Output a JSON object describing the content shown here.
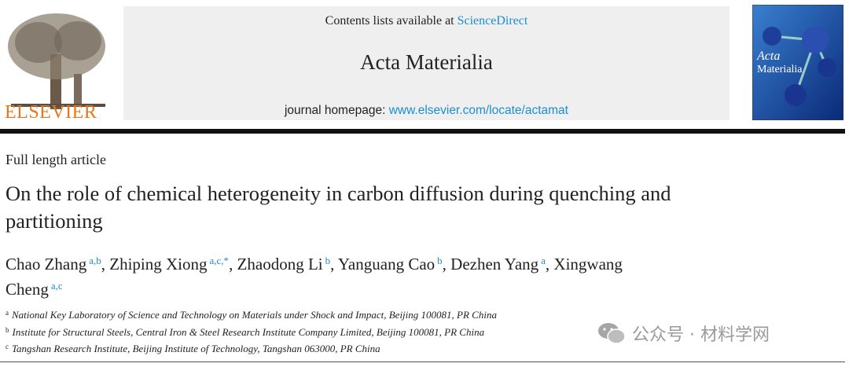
{
  "header": {
    "publisher": "ELSEVIER",
    "contents_prefix": "Contents lists available at",
    "contents_link": "ScienceDirect",
    "journal": "Acta Materialia",
    "homepage_prefix": "journal homepage:",
    "homepage_link": "www.elsevier.com/locate/actamat",
    "cover_title": [
      "Acta",
      "Materialia"
    ]
  },
  "article": {
    "kind": "Full length article",
    "title": "On the role of chemical heterogeneity in carbon diffusion during quenching and partitioning",
    "author_separator": ",",
    "authors": [
      {
        "name": "Chao Zhang",
        "sup": "a,b"
      },
      {
        "name": "Zhiping Xiong",
        "sup": "a,c,*"
      },
      {
        "name": "Zhaodong Li",
        "sup": "b"
      },
      {
        "name": "Yanguang Cao",
        "sup": "b"
      },
      {
        "name": "Dezhen Yang",
        "sup": "a"
      },
      {
        "name": "Xingwang Cheng",
        "sup": "a,c"
      }
    ],
    "affiliations": [
      {
        "key": "a",
        "text": "National Key Laboratory of Science and Technology on Materials under Shock and Impact, Beijing 100081, PR China"
      },
      {
        "key": "b",
        "text": "Institute for Structural Steels, Central Iron & Steel Research Institute Company Limited, Beijing 100081, PR China"
      },
      {
        "key": "c",
        "text": "Tangshan Research Institute, Beijing Institute of Technology, Tangshan 063000, PR China"
      }
    ]
  },
  "watermark": "公众号 · 材料学网"
}
